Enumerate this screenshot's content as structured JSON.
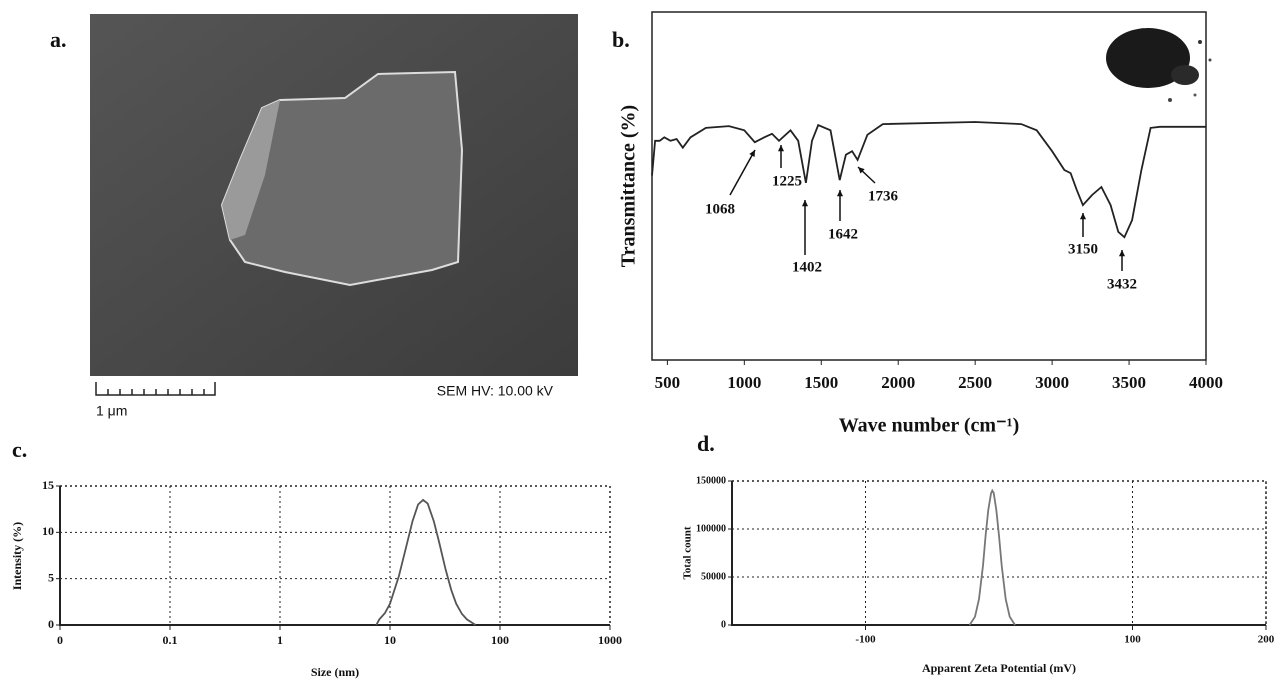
{
  "image": {
    "panel_label": "a.",
    "scale_label": "1 μm",
    "info": "SEM HV: 10.00 kV"
  },
  "chart_data": [
    {
      "type": "line",
      "panel_label": "b.",
      "xlabel": "Wave number (cm⁻¹)",
      "ylabel": "Transmittance (%)",
      "color": "#222222",
      "x": [
        400,
        420,
        450,
        480,
        520,
        560,
        600,
        650,
        750,
        900,
        1000,
        1068,
        1130,
        1180,
        1225,
        1300,
        1350,
        1400,
        1440,
        1480,
        1560,
        1620,
        1660,
        1700,
        1736,
        1800,
        1900,
        2500,
        2800,
        2900,
        3000,
        3080,
        3120,
        3160,
        3200,
        3260,
        3320,
        3380,
        3430,
        3470,
        3520,
        3580,
        3640,
        3700,
        4000
      ],
      "values": [
        53,
        63,
        63,
        64,
        63,
        63.5,
        61,
        64,
        66.7,
        67.2,
        66,
        62.6,
        64,
        65,
        63,
        66,
        63,
        50.9,
        63,
        67.5,
        66,
        51.7,
        59,
        60,
        57.5,
        64.7,
        67.8,
        68.4,
        67.8,
        66,
        60,
        54.6,
        53.7,
        48.9,
        44.5,
        47.4,
        49.7,
        44.5,
        36.8,
        35.3,
        40.2,
        54.6,
        66.7,
        67,
        67
      ],
      "xlim": [
        400,
        4000
      ],
      "xticks": [
        500,
        1000,
        1500,
        2000,
        2500,
        3000,
        3500,
        4000
      ],
      "ylim": [
        0,
        100
      ],
      "annotations": [
        1068,
        1225,
        1402,
        1642,
        1736,
        3150,
        3432
      ]
    },
    {
      "type": "line",
      "panel_label": "c.",
      "xlabel": "Size (nm)",
      "ylabel": "Intensity (%)",
      "color": "#555555",
      "xlog": true,
      "grid": true,
      "x": [
        7.5,
        8,
        9,
        10,
        12,
        14,
        16,
        18,
        20,
        22,
        25,
        28,
        32,
        36,
        40,
        45,
        50,
        60
      ],
      "values": [
        0,
        0.6,
        1.3,
        2.3,
        5.2,
        8.4,
        11.2,
        13,
        13.5,
        13.1,
        11.2,
        8.9,
        6,
        3.8,
        2.3,
        1.2,
        0.6,
        0
      ],
      "xlim": [
        0.01,
        1000
      ],
      "xticks": [
        {
          "value": 0.01,
          "label": "0"
        },
        0.1,
        1,
        10,
        100,
        1000
      ],
      "ylim": [
        0,
        15
      ],
      "yticks": [
        0,
        5,
        10,
        15
      ]
    },
    {
      "type": "line",
      "panel_label": "d.",
      "xlabel": "Apparent Zeta Potential (mV)",
      "ylabel": "Total count",
      "color": "#777777",
      "grid": true,
      "x": [
        -22,
        -18,
        -15,
        -12,
        -10,
        -8,
        -6,
        -5,
        -4,
        -2,
        0,
        2,
        5,
        8,
        12
      ],
      "values": [
        0,
        8600,
        27000,
        62000,
        93000,
        120000,
        137000,
        140000,
        137600,
        120000,
        93000,
        62000,
        27000,
        8600,
        0
      ],
      "xlim": [
        -200,
        200
      ],
      "xticks": [
        -100,
        100,
        200
      ],
      "ylim": [
        0,
        150000
      ],
      "yticks": [
        0,
        50000,
        100000,
        150000
      ]
    }
  ]
}
